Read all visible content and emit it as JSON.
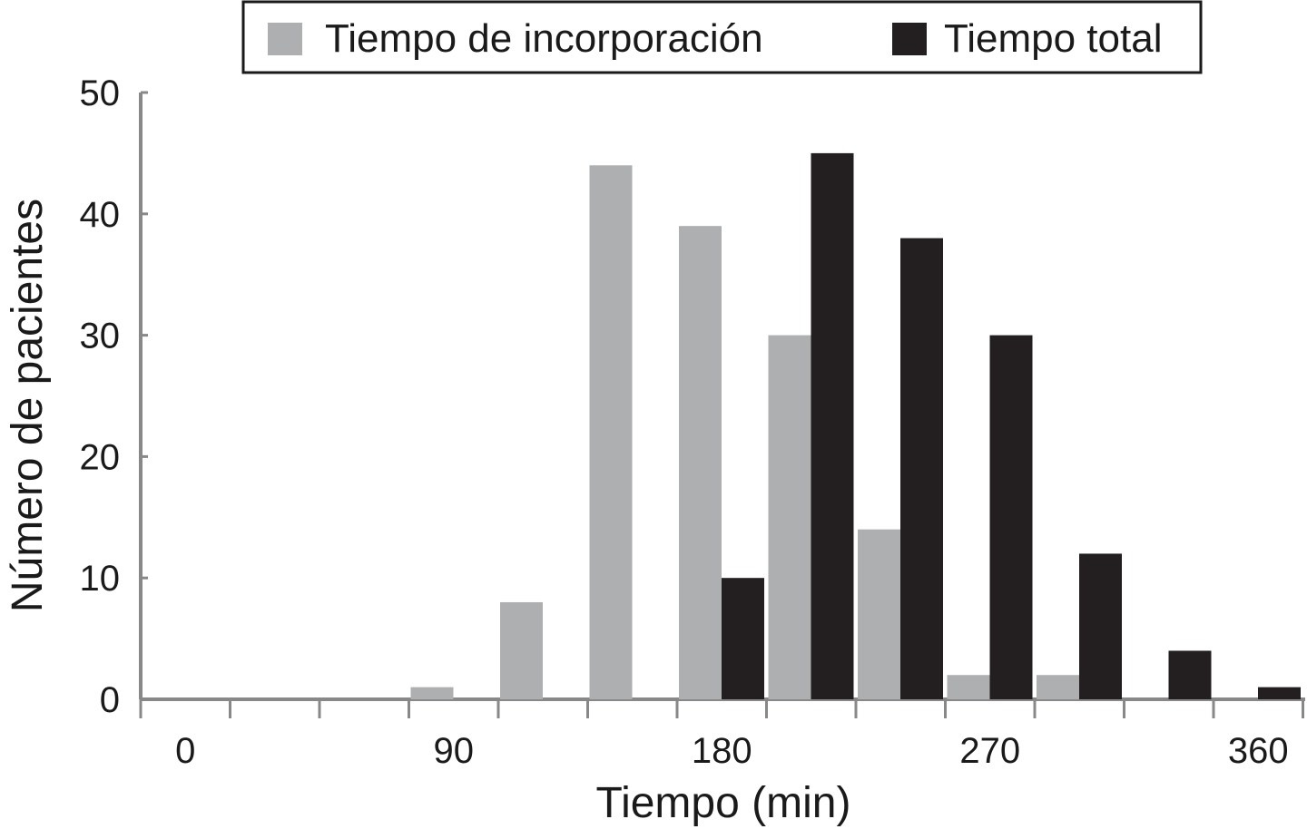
{
  "chart_data": {
    "type": "bar",
    "title": "",
    "xlabel": "Tiempo (min)",
    "ylabel": "Número de pacientes",
    "ylim": [
      0,
      50
    ],
    "y_ticks": [
      0,
      10,
      20,
      30,
      40,
      50
    ],
    "x_tick_labels": [
      "0",
      "90",
      "180",
      "270",
      "360"
    ],
    "x_tick_values": [
      0,
      90,
      180,
      270,
      360
    ],
    "bin_width": 30,
    "bin_starts": [
      0,
      30,
      60,
      90,
      120,
      150,
      180,
      210,
      240,
      270,
      300,
      330,
      360
    ],
    "legend_position": "top",
    "grid": false,
    "series": [
      {
        "name": "Tiempo de incorporación",
        "color": "#aeafb1",
        "values": [
          0,
          0,
          0,
          1,
          8,
          44,
          39,
          30,
          14,
          2,
          2,
          0,
          0
        ]
      },
      {
        "name": "Tiempo total",
        "color": "#231f20",
        "values": [
          0,
          0,
          0,
          0,
          0,
          0,
          10,
          45,
          38,
          30,
          12,
          4,
          1
        ]
      }
    ]
  }
}
